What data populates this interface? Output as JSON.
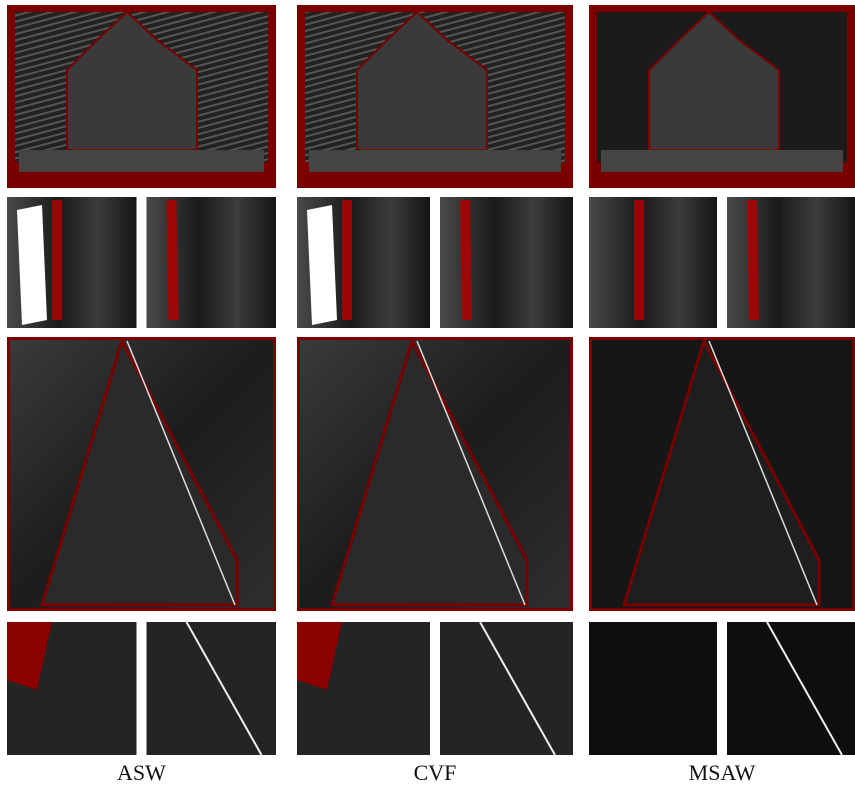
{
  "columns": [
    {
      "label": "ASW"
    },
    {
      "label": "CVF"
    },
    {
      "label": "MSAW"
    }
  ]
}
